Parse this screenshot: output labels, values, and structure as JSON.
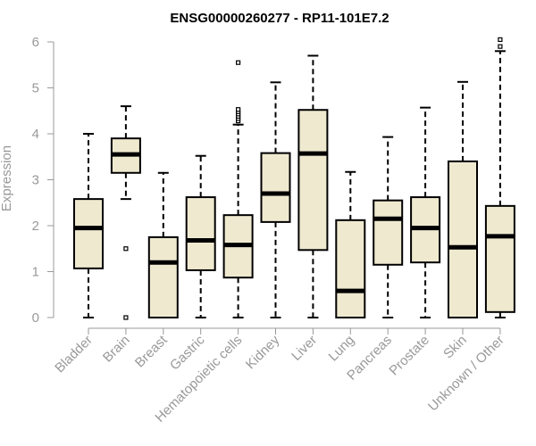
{
  "chart_data": {
    "type": "boxplot",
    "title": "ENSG00000260277 - RP11-101E7.2",
    "xlabel": "",
    "ylabel": "Expression",
    "ylim": [
      0,
      6
    ],
    "yticks": [
      "0",
      "1",
      "2",
      "3",
      "4",
      "5",
      "6"
    ],
    "grid": false,
    "legend": "none",
    "colors": {
      "box_fill": "#efe9d0",
      "stroke": "#000000",
      "axis": "#999999",
      "title": "#000000"
    },
    "categories": [
      "Bladder",
      "Brain",
      "Breast",
      "Gastric",
      "Hematopoietic cells",
      "Kidney",
      "Liver",
      "Lung",
      "Pancreas",
      "Prostate",
      "Skin",
      "Unknown / Other"
    ],
    "boxes": [
      {
        "category": "Bladder",
        "whisker_low": 0.0,
        "q1": 1.07,
        "median": 1.95,
        "q3": 2.58,
        "whisker_high": 4.0,
        "outliers": []
      },
      {
        "category": "Brain",
        "whisker_low": 2.58,
        "q1": 3.15,
        "median": 3.55,
        "q3": 3.9,
        "whisker_high": 4.6,
        "outliers": [
          1.5,
          0.0
        ]
      },
      {
        "category": "Breast",
        "whisker_low": 0.0,
        "q1": 0.0,
        "median": 1.2,
        "q3": 1.75,
        "whisker_high": 3.15,
        "outliers": []
      },
      {
        "category": "Gastric",
        "whisker_low": 0.0,
        "q1": 1.03,
        "median": 1.68,
        "q3": 2.62,
        "whisker_high": 3.52,
        "outliers": []
      },
      {
        "category": "Hematopoietic cells",
        "whisker_low": 0.0,
        "q1": 0.87,
        "median": 1.58,
        "q3": 2.23,
        "whisker_high": 4.2,
        "outliers": [
          4.28,
          4.33,
          4.38,
          4.43,
          4.48,
          4.53,
          5.55
        ]
      },
      {
        "category": "Kidney",
        "whisker_low": 0.0,
        "q1": 2.08,
        "median": 2.7,
        "q3": 3.58,
        "whisker_high": 5.12,
        "outliers": []
      },
      {
        "category": "Liver",
        "whisker_low": 0.0,
        "q1": 1.47,
        "median": 3.57,
        "q3": 4.52,
        "whisker_high": 5.7,
        "outliers": []
      },
      {
        "category": "Lung",
        "whisker_low": 0.0,
        "q1": 0.0,
        "median": 0.58,
        "q3": 2.12,
        "whisker_high": 3.17,
        "outliers": []
      },
      {
        "category": "Pancreas",
        "whisker_low": 0.0,
        "q1": 1.15,
        "median": 2.15,
        "q3": 2.55,
        "whisker_high": 3.93,
        "outliers": []
      },
      {
        "category": "Prostate",
        "whisker_low": 0.0,
        "q1": 1.2,
        "median": 1.95,
        "q3": 2.62,
        "whisker_high": 4.57,
        "outliers": []
      },
      {
        "category": "Skin",
        "whisker_low": 0.0,
        "q1": 0.0,
        "median": 1.53,
        "q3": 3.4,
        "whisker_high": 5.13,
        "outliers": []
      },
      {
        "category": "Unknown / Other",
        "whisker_low": 0.0,
        "q1": 0.12,
        "median": 1.77,
        "q3": 2.43,
        "whisker_high": 5.8,
        "outliers": [
          5.9,
          6.05
        ]
      }
    ]
  }
}
